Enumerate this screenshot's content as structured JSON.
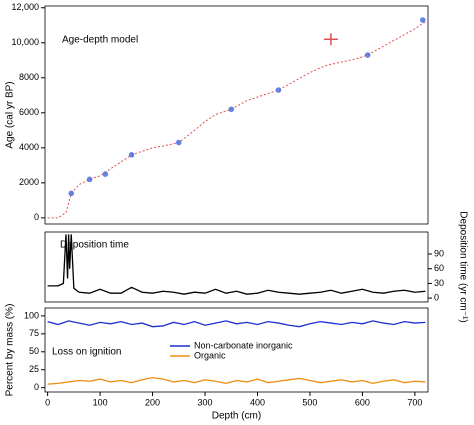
{
  "chart_data": [
    {
      "type": "line",
      "title": "Age-depth model",
      "ylabel": "Age (cal yr BP)",
      "xlim": [
        -5,
        725
      ],
      "ylim": [
        -350,
        12100
      ],
      "yticks": [
        0,
        2000,
        4000,
        6000,
        8000,
        {
          "value": 10000,
          "label": "10,000"
        },
        {
          "value": 12000,
          "label": "12,000"
        }
      ],
      "x": [
        0,
        20,
        35,
        45,
        60,
        80,
        100,
        120,
        140,
        160,
        180,
        200,
        220,
        250,
        280,
        300,
        320,
        350,
        380,
        410,
        440,
        470,
        500,
        530,
        560,
        590,
        610,
        640,
        670,
        700,
        720
      ],
      "series": [
        {
          "color": "#e05050",
          "values": [
            0,
            0,
            300,
            1400,
            1900,
            2200,
            2400,
            2800,
            3200,
            3600,
            3800,
            4000,
            4100,
            4300,
            5000,
            5500,
            5900,
            6200,
            6700,
            7000,
            7300,
            7800,
            8300,
            8700,
            8900,
            9100,
            9300,
            9800,
            10300,
            10800,
            11200
          ]
        }
      ],
      "dates": {
        "color": "#4a6fe0",
        "x": [
          45,
          80,
          110,
          160,
          250,
          350,
          440,
          610,
          715
        ],
        "values": [
          1400,
          2200,
          2500,
          3600,
          4300,
          6200,
          7300,
          9300,
          11300
        ]
      },
      "outlier": {
        "color": "#e05050",
        "x": 540,
        "value": 10200
      }
    },
    {
      "type": "line",
      "title": "Deposition time",
      "y2label": "Deposition time (yr cm⁻¹)",
      "xlim": [
        -5,
        725
      ],
      "y2lim": [
        -8,
        135
      ],
      "y2ticks": [
        0,
        30,
        60,
        90
      ],
      "x": [
        0,
        20,
        30,
        35,
        38,
        40,
        42,
        45,
        50,
        60,
        80,
        100,
        120,
        140,
        160,
        180,
        200,
        220,
        240,
        260,
        280,
        300,
        320,
        340,
        360,
        380,
        400,
        420,
        440,
        460,
        480,
        500,
        520,
        540,
        560,
        580,
        600,
        620,
        640,
        660,
        680,
        700,
        720
      ],
      "series": [
        {
          "color": "#000000",
          "axis": "y2",
          "values": [
            25,
            25,
            30,
            130,
            40,
            130,
            60,
            130,
            20,
            12,
            10,
            18,
            10,
            10,
            22,
            12,
            10,
            14,
            12,
            8,
            12,
            10,
            18,
            10,
            14,
            8,
            10,
            16,
            12,
            10,
            8,
            10,
            12,
            16,
            10,
            14,
            18,
            12,
            10,
            14,
            16,
            12,
            14
          ]
        }
      ]
    },
    {
      "type": "line",
      "title": "Loss on ignition",
      "ylabel": "Percent by mass (%)",
      "xlabel": "Depth (cm)",
      "xlim": [
        -5,
        725
      ],
      "ylim": [
        -6,
        111
      ],
      "yticks": [
        0,
        25,
        50,
        75,
        100
      ],
      "xticks": [
        0,
        100,
        200,
        300,
        400,
        500,
        600,
        700
      ],
      "x": [
        0,
        20,
        40,
        60,
        80,
        100,
        120,
        140,
        160,
        180,
        200,
        220,
        240,
        260,
        280,
        300,
        320,
        340,
        360,
        380,
        400,
        420,
        440,
        460,
        480,
        500,
        520,
        540,
        560,
        580,
        600,
        620,
        640,
        660,
        680,
        700,
        720
      ],
      "series": [
        {
          "name": "Non-carbonate inorganic",
          "color": "#1f2fd0",
          "values": [
            92,
            88,
            93,
            90,
            87,
            91,
            89,
            92,
            88,
            90,
            85,
            86,
            91,
            88,
            92,
            87,
            90,
            93,
            89,
            91,
            88,
            92,
            90,
            87,
            85,
            89,
            92,
            90,
            88,
            91,
            89,
            93,
            90,
            88,
            92,
            90,
            91
          ]
        },
        {
          "name": "Organic",
          "color": "#f08c10",
          "values": [
            5,
            6,
            8,
            10,
            9,
            12,
            8,
            10,
            7,
            11,
            14,
            12,
            8,
            10,
            7,
            11,
            9,
            6,
            10,
            8,
            12,
            7,
            9,
            11,
            13,
            10,
            7,
            9,
            11,
            8,
            10,
            6,
            9,
            11,
            7,
            9,
            8
          ]
        }
      ]
    }
  ]
}
